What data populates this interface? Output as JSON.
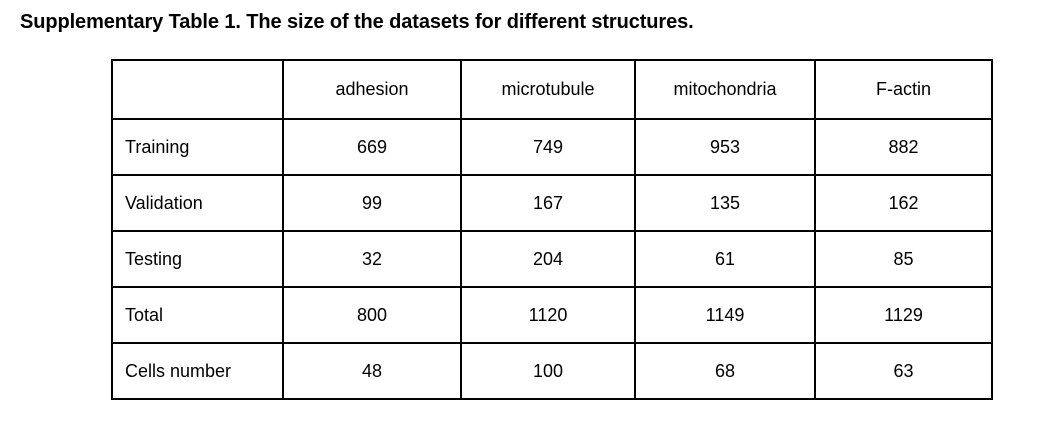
{
  "caption": "Supplementary Table 1. The size of the datasets for different structures.",
  "table": {
    "header": [
      "",
      "adhesion",
      "microtubule",
      "mitochondria",
      "F-actin"
    ],
    "rows": [
      {
        "label": "Training",
        "cells": [
          "669",
          "749",
          "953",
          "882"
        ]
      },
      {
        "label": "Validation",
        "cells": [
          "99",
          "167",
          "135",
          "162"
        ]
      },
      {
        "label": "Testing",
        "cells": [
          "32",
          "204",
          "61",
          "85"
        ]
      },
      {
        "label": "Total",
        "cells": [
          "800",
          "1120",
          "1149",
          "1129"
        ]
      },
      {
        "label": "Cells number",
        "cells": [
          "48",
          "100",
          "68",
          "63"
        ]
      }
    ]
  }
}
